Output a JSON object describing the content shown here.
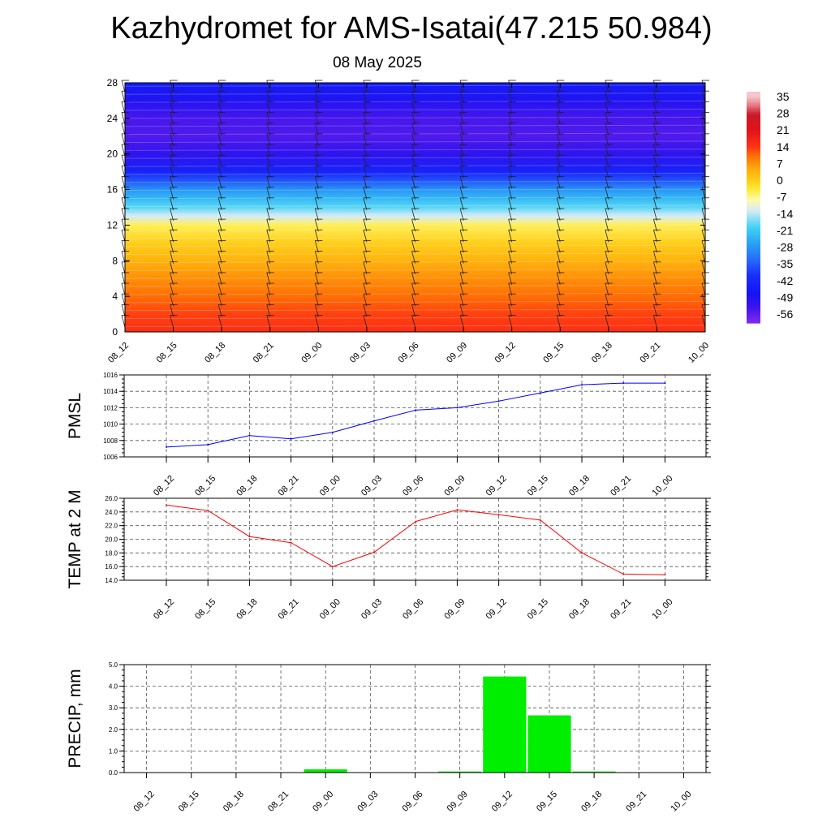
{
  "page": {
    "title": "Kazhydromet for AMS-Isatai(47.215 50.984)",
    "date": "08 May 2025"
  },
  "chart_data": [
    {
      "type": "heatmap",
      "x_categories": [
        "08_12",
        "08_15",
        "08_18",
        "08_21",
        "09_00",
        "09_03",
        "09_06",
        "09_09",
        "09_12",
        "09_15",
        "09_18",
        "09_21",
        "10_00"
      ],
      "yticks": [
        0,
        4,
        8,
        12,
        16,
        20,
        24,
        28
      ],
      "ylim": [
        0,
        28
      ],
      "colorbar_ticks": [
        "35",
        "28",
        "21",
        "14",
        "7",
        "0",
        "-7",
        "-14",
        "-21",
        "-28",
        "-35",
        "-42",
        "-49",
        "-56"
      ],
      "colorbar_range": [
        -63,
        38
      ],
      "level_temperature_profile": [
        [
          0,
          15
        ],
        [
          2,
          13
        ],
        [
          4,
          10
        ],
        [
          6,
          7
        ],
        [
          8,
          3
        ],
        [
          10,
          -1
        ],
        [
          12,
          -6
        ],
        [
          13,
          -14
        ],
        [
          14,
          -20
        ],
        [
          15,
          -25
        ],
        [
          16,
          -30
        ],
        [
          17,
          -38
        ],
        [
          18,
          -46
        ],
        [
          20,
          -54
        ],
        [
          22,
          -58
        ],
        [
          24,
          -57
        ],
        [
          26,
          -52
        ],
        [
          28,
          -48
        ]
      ],
      "wind_barbs": "shown",
      "grid": false
    },
    {
      "type": "line",
      "ylabel": "PMSL",
      "categories": [
        "08_12",
        "08_15",
        "08_18",
        "08_21",
        "09_00",
        "09_03",
        "09_06",
        "09_09",
        "09_12",
        "09_15",
        "09_18",
        "09_21",
        "10_00"
      ],
      "values": [
        1007.2,
        1007.5,
        1008.6,
        1008.2,
        1009.0,
        1010.4,
        1011.7,
        1012.0,
        1012.8,
        1013.8,
        1014.8,
        1015.0,
        1015.0
      ],
      "ylim": [
        1006,
        1016
      ],
      "yticks": [
        "1006",
        "1008",
        "1010",
        "1012",
        "1014",
        "1016"
      ],
      "color": "#0000ff",
      "grid": true
    },
    {
      "type": "line",
      "ylabel": "TEMP at 2 M",
      "categories": [
        "08_12",
        "08_15",
        "08_18",
        "08_21",
        "09_00",
        "09_03",
        "09_06",
        "09_09",
        "09_12",
        "09_15",
        "09_18",
        "09_21",
        "10_00"
      ],
      "values": [
        25.0,
        24.2,
        20.4,
        19.5,
        16.0,
        18.1,
        22.6,
        24.3,
        23.6,
        22.8,
        18.0,
        14.9,
        14.8
      ],
      "ylim": [
        14,
        26
      ],
      "yticks": [
        "14.0",
        "16.0",
        "18.0",
        "20.0",
        "22.0",
        "24.0",
        "26.0"
      ],
      "color": "#ff0000",
      "grid": true
    },
    {
      "type": "bar",
      "ylabel": "PRECIP, mm",
      "categories": [
        "08_12",
        "08_15",
        "08_18",
        "08_21",
        "09_00",
        "09_03",
        "09_06",
        "09_09",
        "09_12",
        "09_15",
        "09_18",
        "09_21",
        "10_00"
      ],
      "values": [
        0,
        0,
        0,
        0,
        0.15,
        0,
        0,
        0.05,
        4.45,
        2.65,
        0.05,
        0,
        0
      ],
      "ylim": [
        0,
        5
      ],
      "yticks": [
        "0.0",
        "1.0",
        "2.0",
        "3.0",
        "4.0",
        "5.0"
      ],
      "color": "#00ee00",
      "grid": true
    }
  ]
}
